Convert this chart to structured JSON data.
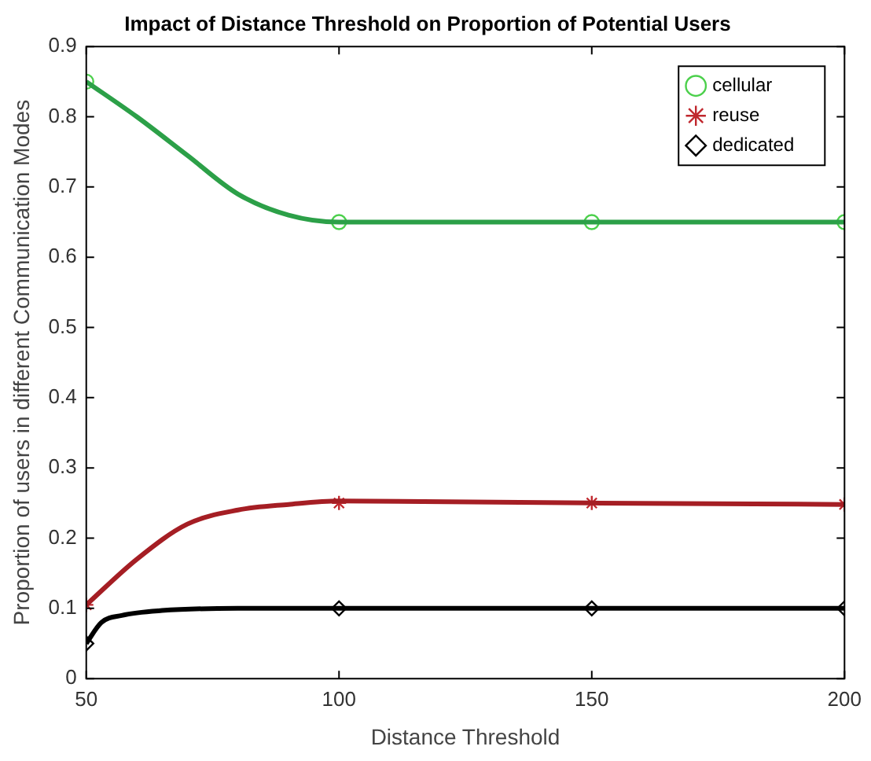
{
  "chart_data": {
    "type": "line",
    "title": "Impact of Distance Threshold on Proportion of Potential Users",
    "xlabel": "Distance Threshold",
    "ylabel": "Proportion of users in different Communication Modes",
    "xlim": [
      50,
      200
    ],
    "xticks": [
      50,
      100,
      150,
      200
    ],
    "ylim": [
      0,
      0.9
    ],
    "yticks": [
      0,
      0.1,
      0.2,
      0.3,
      0.4,
      0.5,
      0.6,
      0.7,
      0.8,
      0.9
    ],
    "grid": false,
    "legend": "top right",
    "series": [
      {
        "type": "line",
        "marker": "none",
        "color": "#2ca048",
        "x": [
          50,
          60,
          70,
          80,
          90,
          100,
          150,
          200
        ],
        "values": [
          0.85,
          0.8,
          0.745,
          0.69,
          0.66,
          0.65,
          0.65,
          0.65
        ]
      },
      {
        "type": "line",
        "marker": "none",
        "color": "#a51e24",
        "x": [
          50,
          60,
          70,
          80,
          90,
          100,
          150,
          200
        ],
        "values": [
          0.105,
          0.17,
          0.22,
          0.24,
          0.248,
          0.253,
          0.25,
          0.248
        ]
      },
      {
        "type": "line",
        "marker": "none",
        "color": "#000000",
        "x": [
          50,
          53,
          57,
          65,
          80,
          100,
          150,
          200
        ],
        "values": [
          0.05,
          0.08,
          0.09,
          0.097,
          0.1,
          0.1,
          0.1,
          0.1
        ]
      },
      {
        "type": "scatter",
        "name": "cellular",
        "marker": "circle",
        "color": "#4cd04c",
        "x": [
          50,
          100,
          150,
          200
        ],
        "values": [
          0.85,
          0.65,
          0.65,
          0.65
        ]
      },
      {
        "type": "scatter",
        "name": "reuse",
        "marker": "cross",
        "color": "#c0282e",
        "x": [
          50,
          100,
          150,
          200
        ],
        "values": [
          0.105,
          0.25,
          0.25,
          0.248
        ]
      },
      {
        "type": "scatter",
        "name": "dedicated",
        "marker": "diamond",
        "color": "#000000",
        "x": [
          50,
          100,
          150,
          200
        ],
        "values": [
          0.05,
          0.1,
          0.1,
          0.1
        ]
      }
    ]
  }
}
